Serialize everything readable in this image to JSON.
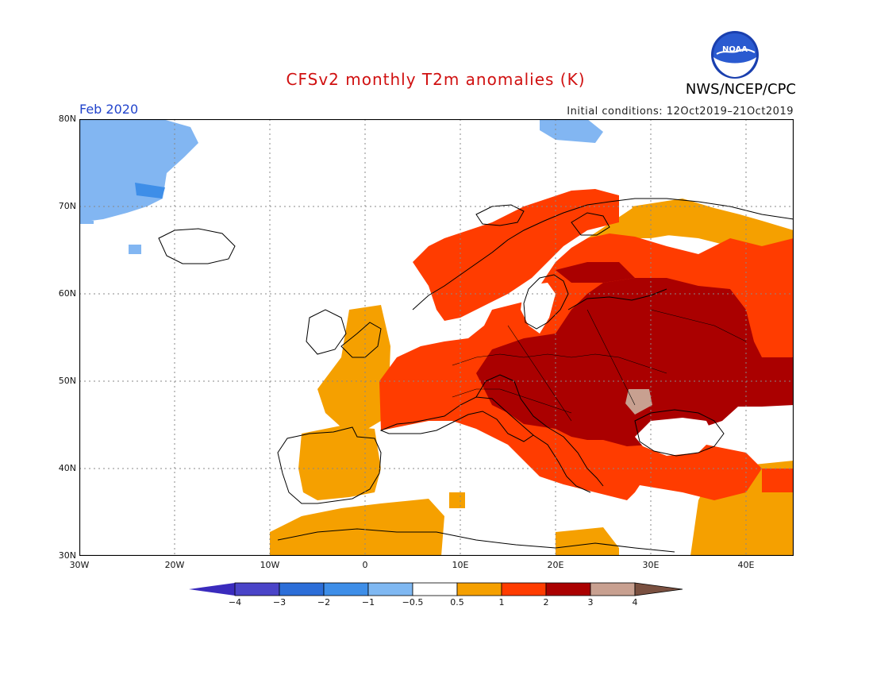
{
  "header": {
    "title": "CFSv2 monthly T2m anomalies (K)",
    "org": "NWS/NCEP/CPC",
    "logo_text": "NOAA",
    "month": "Feb 2020",
    "initial_conditions": "Initial conditions: 12Oct2019–21Oct2019"
  },
  "axes": {
    "lat_labels": [
      "80N",
      "70N",
      "60N",
      "50N",
      "40N",
      "30N"
    ],
    "lon_labels": [
      "30W",
      "20W",
      "10W",
      "0",
      "10E",
      "20E",
      "30E",
      "40E"
    ],
    "lon_range": [
      -30,
      45
    ],
    "lat_range": [
      30,
      80
    ]
  },
  "colorbar": {
    "labels": [
      "−4",
      "−3",
      "−2",
      "−1",
      "−0.5",
      "0.5",
      "1",
      "2",
      "3",
      "4"
    ],
    "colors": [
      "#3a2bbd",
      "#4a44c8",
      "#2c6ed8",
      "#3e8ee8",
      "#7fb8f2",
      "#ffffff",
      "#f5a000",
      "#ff3c00",
      "#aa0000",
      "#c8a090",
      "#7a5040"
    ]
  },
  "anomaly_colors": {
    "cold_light": "#82b6f2",
    "cold_mid": "#3e8ee8",
    "warm_1": "#f5a000",
    "warm_2": "#ff3c00",
    "warm_3": "#aa0000",
    "warm_4": "#c8a090"
  }
}
